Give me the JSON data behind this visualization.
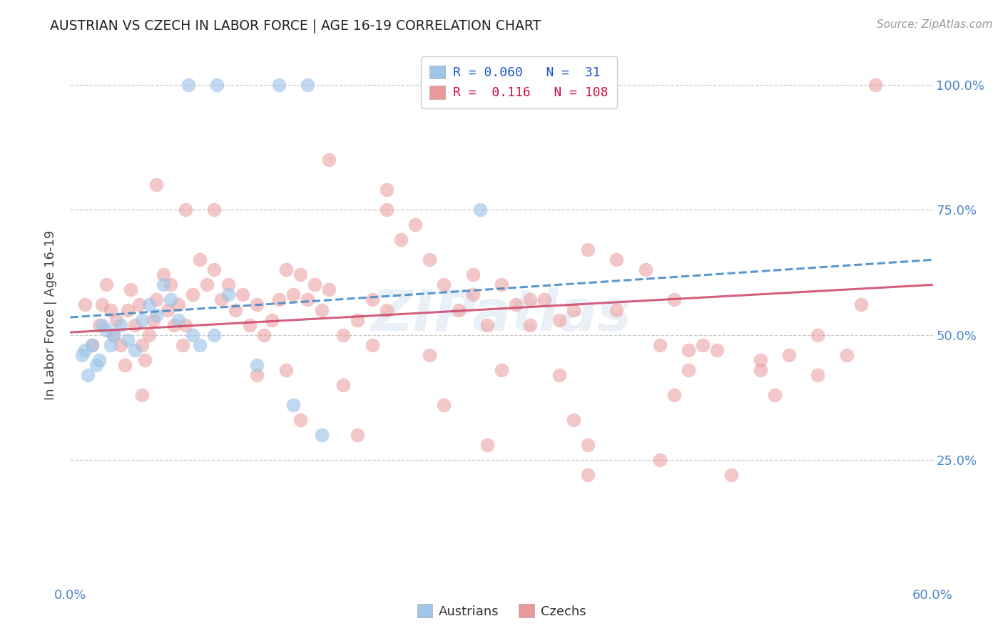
{
  "title": "AUSTRIAN VS CZECH IN LABOR FORCE | AGE 16-19 CORRELATION CHART",
  "source": "Source: ZipAtlas.com",
  "ylabel": "In Labor Force | Age 16-19",
  "xlim": [
    0.0,
    0.6
  ],
  "ylim": [
    0.0,
    1.08
  ],
  "watermark": "ZIPatlas",
  "legend_R_blue": "0.060",
  "legend_N_blue": "31",
  "legend_R_pink": "0.116",
  "legend_N_pink": "108",
  "blue_color": "#9fc5e8",
  "pink_color": "#ea9999",
  "blue_line_color": "#3d85c8",
  "pink_line_color": "#cc4466",
  "grid_color": "#bbbbbb",
  "blue_x": [
    0.082,
    0.102,
    0.145,
    0.165,
    0.285,
    0.008,
    0.01,
    0.012,
    0.015,
    0.018,
    0.02,
    0.022,
    0.025,
    0.028,
    0.03,
    0.035,
    0.04,
    0.045,
    0.05,
    0.055,
    0.06,
    0.065,
    0.07,
    0.075,
    0.085,
    0.09,
    0.1,
    0.11,
    0.13,
    0.155,
    0.175
  ],
  "blue_y": [
    1.0,
    1.0,
    1.0,
    1.0,
    0.75,
    0.46,
    0.47,
    0.42,
    0.48,
    0.44,
    0.45,
    0.52,
    0.51,
    0.48,
    0.5,
    0.52,
    0.49,
    0.47,
    0.53,
    0.56,
    0.54,
    0.6,
    0.57,
    0.53,
    0.5,
    0.48,
    0.5,
    0.58,
    0.44,
    0.36,
    0.3
  ],
  "pink_x": [
    0.56,
    0.01,
    0.015,
    0.02,
    0.022,
    0.025,
    0.028,
    0.03,
    0.032,
    0.035,
    0.038,
    0.04,
    0.042,
    0.045,
    0.048,
    0.05,
    0.052,
    0.055,
    0.058,
    0.06,
    0.065,
    0.068,
    0.07,
    0.072,
    0.075,
    0.078,
    0.08,
    0.085,
    0.09,
    0.095,
    0.1,
    0.105,
    0.11,
    0.115,
    0.12,
    0.125,
    0.13,
    0.135,
    0.14,
    0.145,
    0.15,
    0.155,
    0.16,
    0.165,
    0.17,
    0.175,
    0.18,
    0.19,
    0.2,
    0.21,
    0.22,
    0.23,
    0.24,
    0.25,
    0.26,
    0.27,
    0.28,
    0.29,
    0.3,
    0.31,
    0.32,
    0.33,
    0.34,
    0.35,
    0.36,
    0.38,
    0.4,
    0.42,
    0.44,
    0.22,
    0.32,
    0.18,
    0.08,
    0.22,
    0.28,
    0.1,
    0.06,
    0.38,
    0.5,
    0.45,
    0.05,
    0.13,
    0.25,
    0.34,
    0.42,
    0.15,
    0.19,
    0.26,
    0.35,
    0.43,
    0.48,
    0.52,
    0.55,
    0.36,
    0.41,
    0.16,
    0.2,
    0.29,
    0.36,
    0.46,
    0.48,
    0.52,
    0.54,
    0.41,
    0.43,
    0.21,
    0.3,
    0.49
  ],
  "pink_y": [
    1.0,
    0.56,
    0.48,
    0.52,
    0.56,
    0.6,
    0.55,
    0.5,
    0.53,
    0.48,
    0.44,
    0.55,
    0.59,
    0.52,
    0.56,
    0.48,
    0.45,
    0.5,
    0.53,
    0.57,
    0.62,
    0.55,
    0.6,
    0.52,
    0.56,
    0.48,
    0.52,
    0.58,
    0.65,
    0.6,
    0.63,
    0.57,
    0.6,
    0.55,
    0.58,
    0.52,
    0.56,
    0.5,
    0.53,
    0.57,
    0.63,
    0.58,
    0.62,
    0.57,
    0.6,
    0.55,
    0.59,
    0.5,
    0.53,
    0.57,
    0.75,
    0.69,
    0.72,
    0.65,
    0.6,
    0.55,
    0.58,
    0.52,
    0.6,
    0.56,
    0.52,
    0.57,
    0.53,
    0.55,
    0.67,
    0.65,
    0.63,
    0.57,
    0.48,
    0.79,
    0.57,
    0.85,
    0.75,
    0.55,
    0.62,
    0.75,
    0.8,
    0.55,
    0.46,
    0.47,
    0.38,
    0.42,
    0.46,
    0.42,
    0.38,
    0.43,
    0.4,
    0.36,
    0.33,
    0.47,
    0.43,
    0.5,
    0.56,
    0.28,
    0.25,
    0.33,
    0.3,
    0.28,
    0.22,
    0.22,
    0.45,
    0.42,
    0.46,
    0.48,
    0.43,
    0.48,
    0.43,
    0.38
  ],
  "blue_trend_x": [
    0.0,
    0.6
  ],
  "blue_trend_y": [
    0.535,
    0.65
  ],
  "pink_trend_x": [
    0.0,
    0.6
  ],
  "pink_trend_y": [
    0.505,
    0.6
  ]
}
